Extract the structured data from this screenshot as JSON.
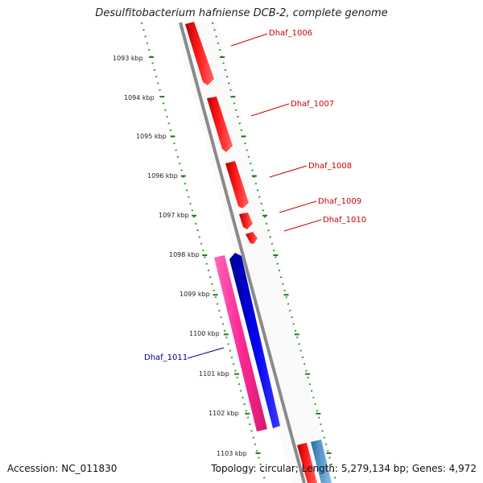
{
  "title": "Desulfitobacterium hafniense DCB-2, complete genome",
  "footer": {
    "accession": "Accession: NC_011830",
    "summary": "Topology: circular; Length: 5,279,134 bp; Genes: 4,972"
  },
  "ruler": {
    "ticks": [
      "1093 kbp",
      "1094 kbp",
      "1095 kbp",
      "1096 kbp",
      "1097 kbp",
      "1098 kbp",
      "1099 kbp",
      "1100 kbp",
      "1101 kbp",
      "1102 kbp",
      "1103 kbp"
    ]
  },
  "genes": [
    {
      "label": "Dhaf_1006",
      "strand": "forward",
      "color": "#ff0000"
    },
    {
      "label": "Dhaf_1007",
      "strand": "forward",
      "color": "#ff0000"
    },
    {
      "label": "Dhaf_1008",
      "strand": "forward",
      "color": "#ff0000"
    },
    {
      "label": "Dhaf_1009",
      "strand": "forward",
      "color": "#ff0000"
    },
    {
      "label": "Dhaf_1010",
      "strand": "forward",
      "color": "#ff0000"
    },
    {
      "label": "Dhaf_1011",
      "strand": "reverse",
      "color": "#0000dd"
    }
  ],
  "colors": {
    "forward_gene": "#ff0000",
    "reverse_gene": "#0000ee",
    "pink_feature": "#ff3aa0",
    "steelblue_feature": "#4a87bd",
    "backbone": "#808080",
    "tick_dots": "#228b22",
    "forward_label": "#cc0000",
    "reverse_label": "#00008b"
  }
}
